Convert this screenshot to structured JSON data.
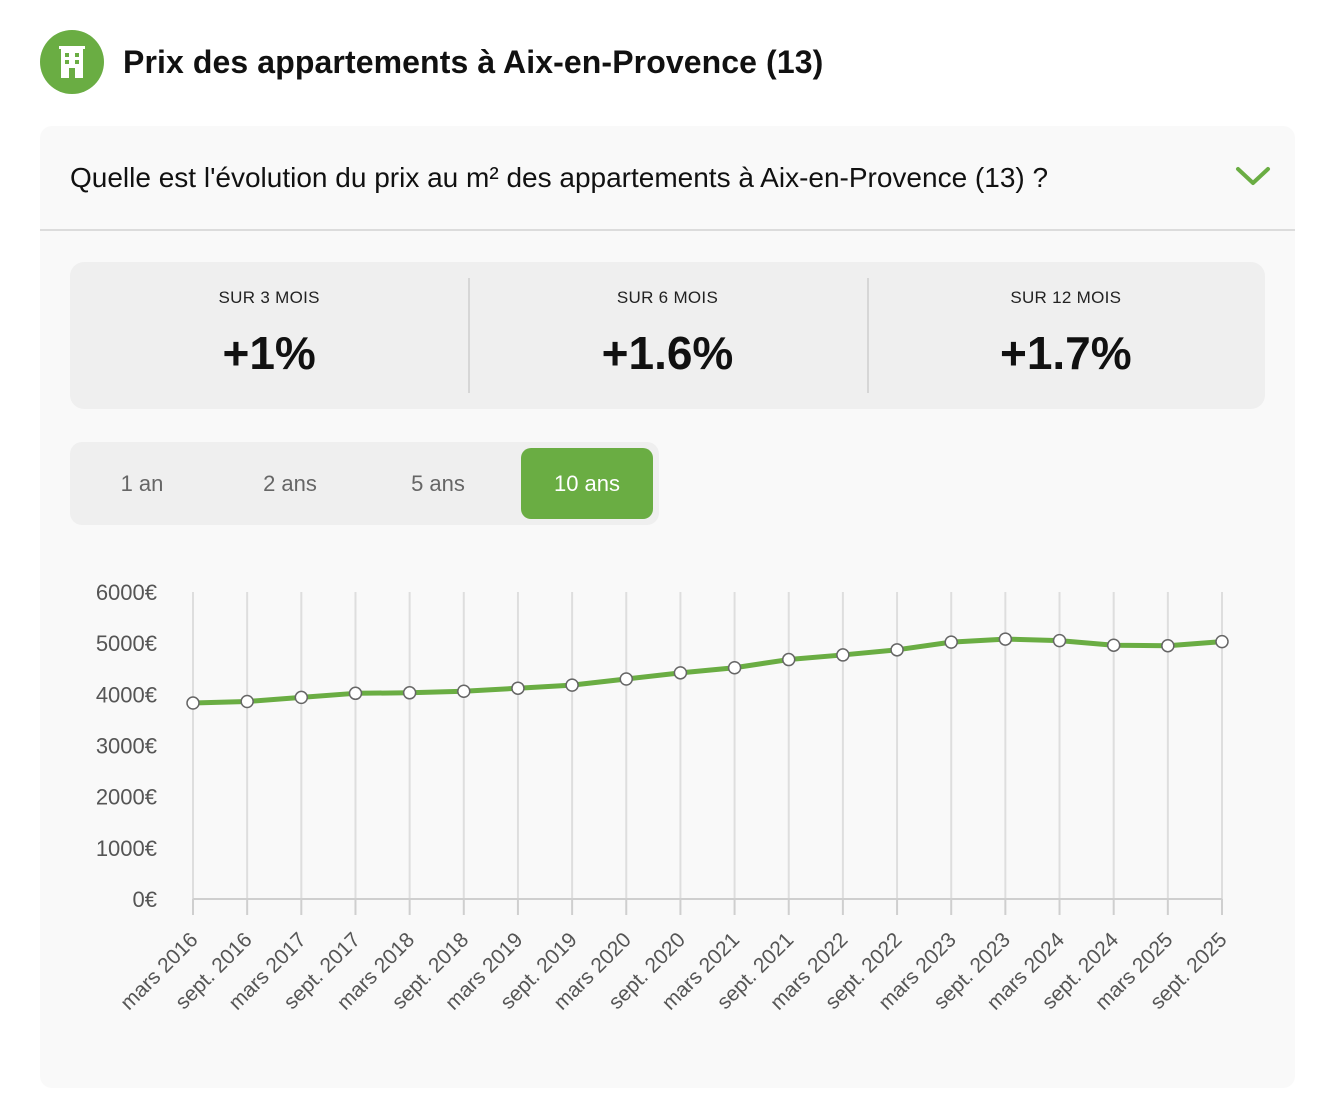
{
  "header": {
    "title": "Prix des appartements à Aix-en-Provence (13)",
    "icon": "building-icon",
    "icon_color": "#6aad43"
  },
  "section": {
    "question": "Quelle est l'évolution du prix au m² des appartements à Aix-en-Provence (13) ?",
    "toggle_icon": "chevron-down-icon"
  },
  "stats": [
    {
      "label": "SUR 3 MOIS",
      "value": "+1%"
    },
    {
      "label": "SUR 6 MOIS",
      "value": "+1.6%"
    },
    {
      "label": "SUR 12 MOIS",
      "value": "+1.7%"
    }
  ],
  "range": {
    "options": [
      "1 an",
      "2 ans",
      "5 ans",
      "10 ans"
    ],
    "selected": "10 ans"
  },
  "colors": {
    "accent": "#6aad43"
  },
  "chart_data": {
    "type": "line",
    "title": "",
    "xlabel": "",
    "ylabel": "",
    "ylim": [
      0,
      6000
    ],
    "yticks": [
      "0€",
      "1000€",
      "2000€",
      "3000€",
      "4000€",
      "5000€",
      "6000€"
    ],
    "categories": [
      "mars 2016",
      "sept. 2016",
      "mars 2017",
      "sept. 2017",
      "mars 2018",
      "sept. 2018",
      "mars 2019",
      "sept. 2019",
      "mars 2020",
      "sept. 2020",
      "mars 2021",
      "sept. 2021",
      "mars 2022",
      "sept. 2022",
      "mars 2023",
      "sept. 2023",
      "mars 2024",
      "sept. 2024",
      "mars 2025",
      "sept. 2025"
    ],
    "series": [
      {
        "values": [
          3830,
          3860,
          3940,
          4020,
          4030,
          4060,
          4120,
          4180,
          4300,
          4420,
          4520,
          4680,
          4770,
          4870,
          5020,
          5080,
          5050,
          4960,
          4950,
          5030
        ]
      }
    ],
    "grid": "vertical",
    "legend": "none"
  }
}
